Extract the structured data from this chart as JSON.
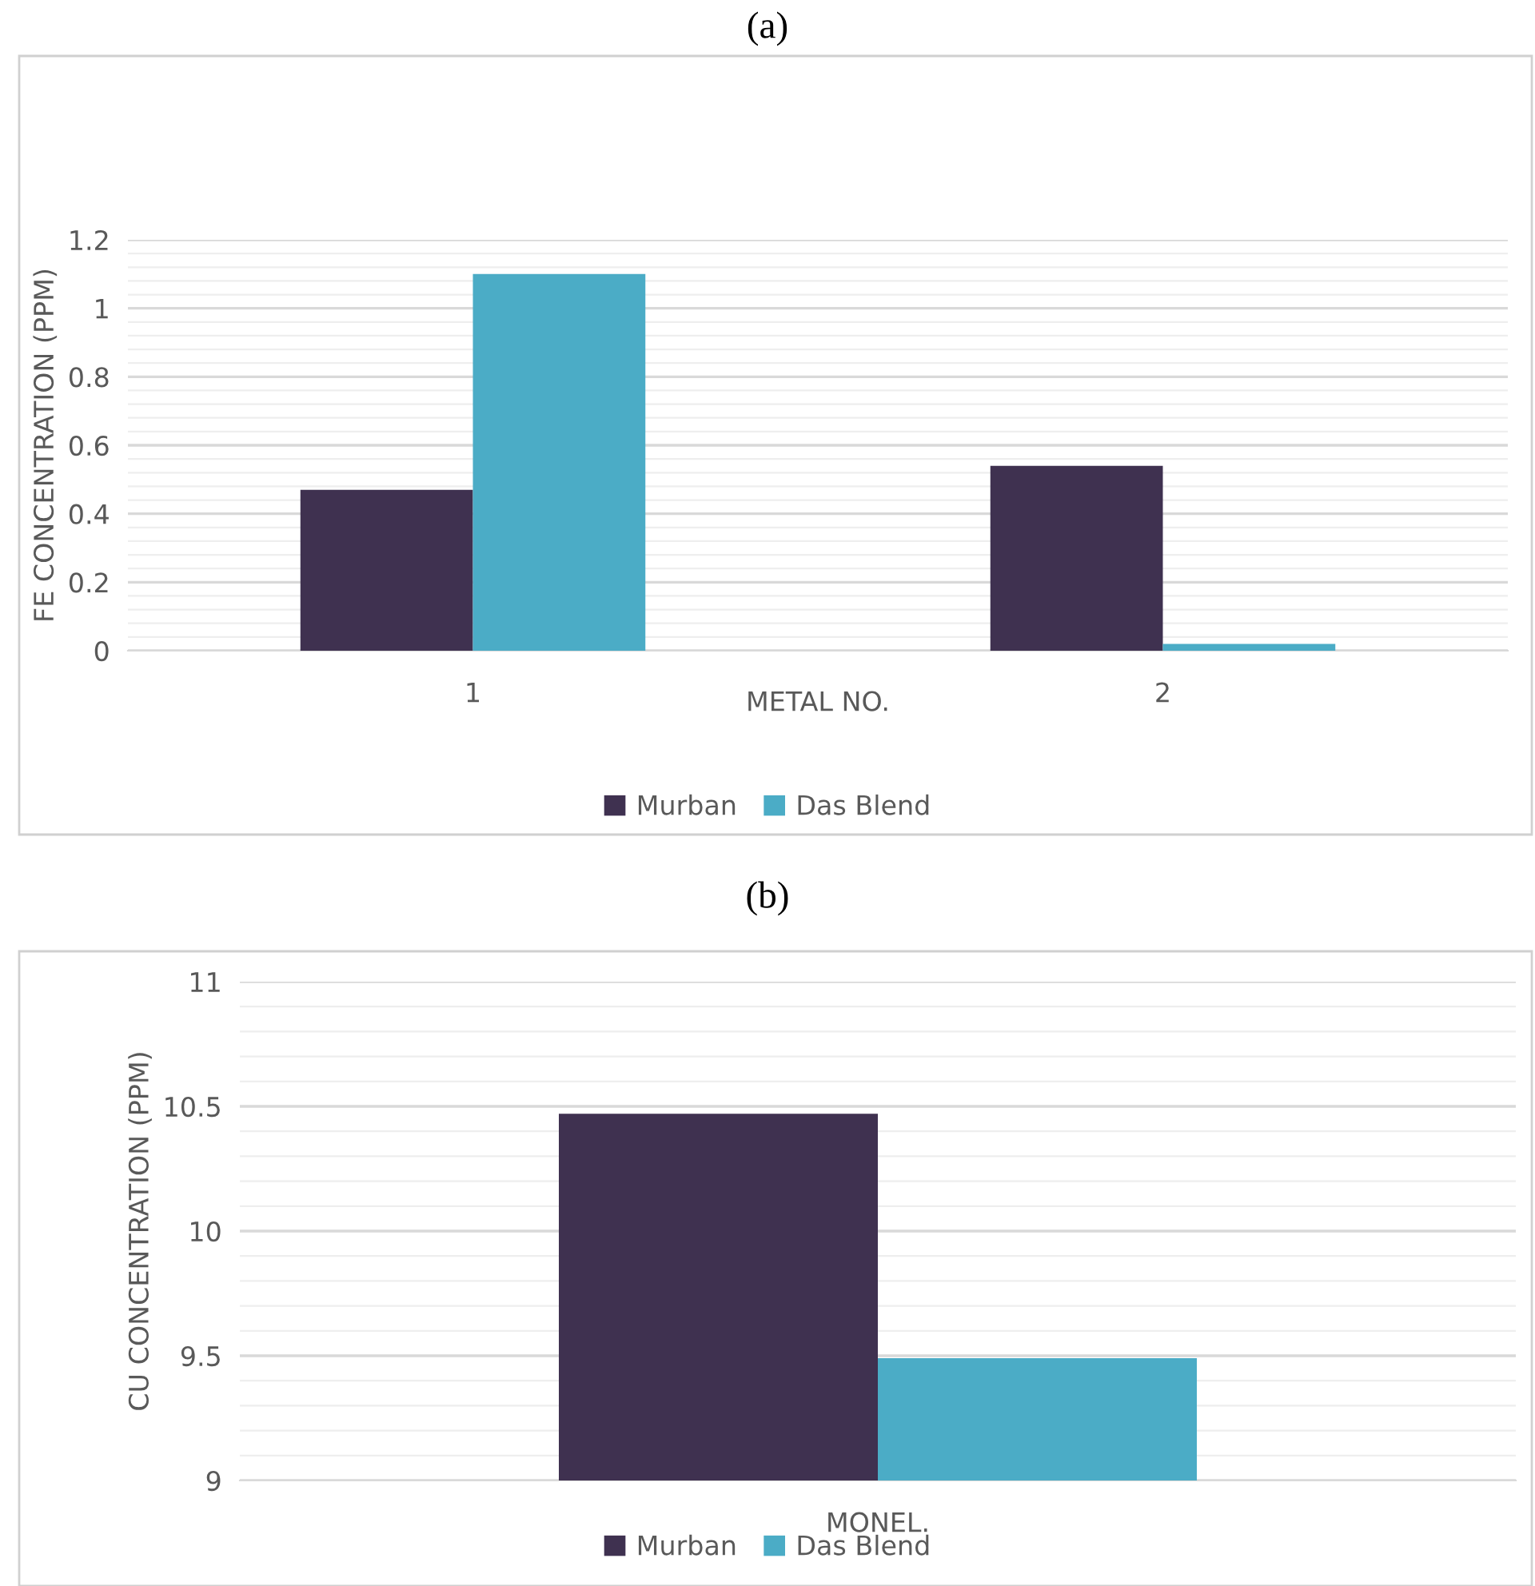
{
  "chart_data": [
    {
      "type": "bar",
      "title": "(a)",
      "xlabel": "METAL NO.",
      "ylabel": "FE CONCENTRATION (PPM)",
      "categories": [
        "1",
        "2"
      ],
      "series": [
        {
          "name": "Murban",
          "color": "#3f3150",
          "values": [
            0.47,
            0.54
          ]
        },
        {
          "name": "Das Blend",
          "color": "#4bacc6",
          "values": [
            1.1,
            0.02
          ]
        }
      ],
      "ylim": [
        0,
        1.2
      ],
      "yticks": [
        0,
        0.2,
        0.4,
        0.6,
        0.8,
        1,
        1.2
      ],
      "grid": "y",
      "legend": "bottom"
    },
    {
      "type": "bar",
      "title": "(b)",
      "ylabel": "CU CONCENTRATION (PPM)",
      "categories": [
        "MONEL."
      ],
      "series": [
        {
          "name": "Murban",
          "color": "#3f3150",
          "values": [
            10.47
          ]
        },
        {
          "name": "Das Blend",
          "color": "#4bacc6",
          "values": [
            9.49
          ]
        }
      ],
      "ylim": [
        9,
        11
      ],
      "yticks": [
        9,
        9.5,
        10,
        10.5,
        11
      ],
      "grid": "y",
      "legend": "bottom"
    }
  ]
}
